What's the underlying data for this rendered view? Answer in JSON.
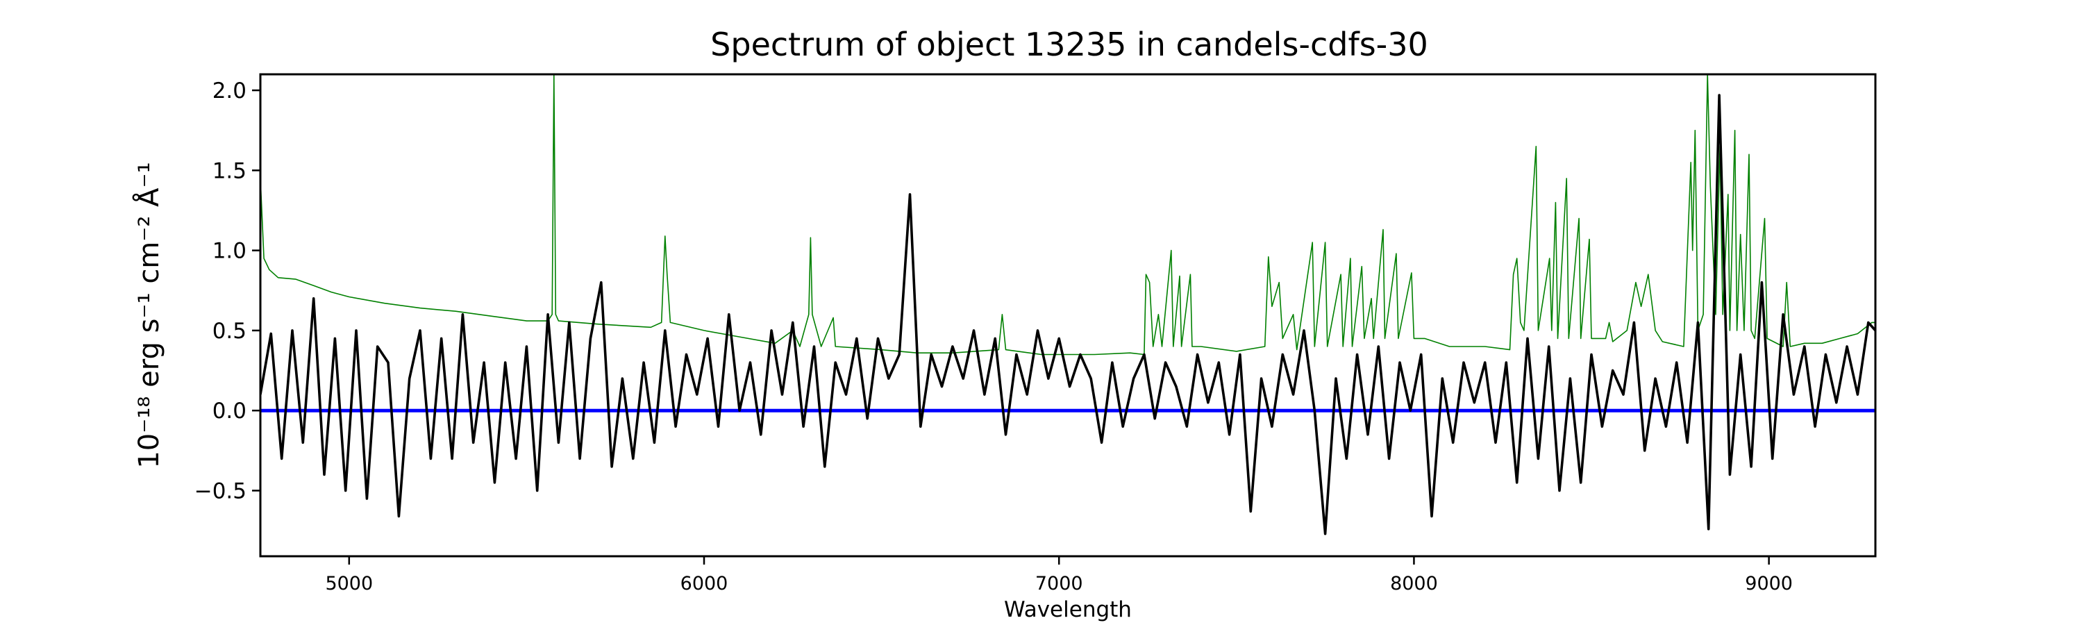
{
  "chart_data": {
    "type": "line",
    "title": "Spectrum of object 13235 in candels-cdfs-30",
    "xlabel": "Wavelength",
    "ylabel": "10⁻¹⁸ erg s⁻¹ cm⁻² Å⁻¹",
    "xlim": [
      4750,
      9300
    ],
    "ylim": [
      -0.91,
      2.1
    ],
    "xticks": [
      5000,
      6000,
      7000,
      8000,
      9000
    ],
    "yticks": [
      -0.5,
      0.0,
      0.5,
      1.0,
      1.5,
      2.0
    ],
    "ytick_labels": [
      "−0.5",
      "0.0",
      "0.5",
      "1.0",
      "1.5",
      "2.0"
    ],
    "grid": false,
    "colors": {
      "flux": "#000000",
      "sky": "#008000",
      "zero": "#0000ff"
    },
    "series": [
      {
        "key": "flux",
        "x": [
          4750,
          4780,
          4810,
          4840,
          4870,
          4900,
          4930,
          4960,
          4990,
          5020,
          5050,
          5080,
          5110,
          5140,
          5170,
          5200,
          5230,
          5260,
          5290,
          5320,
          5350,
          5380,
          5410,
          5440,
          5470,
          5500,
          5530,
          5560,
          5590,
          5620,
          5650,
          5680,
          5710,
          5740,
          5770,
          5800,
          5830,
          5860,
          5890,
          5920,
          5950,
          5980,
          6010,
          6040,
          6070,
          6100,
          6130,
          6160,
          6190,
          6220,
          6250,
          6280,
          6310,
          6340,
          6370,
          6400,
          6430,
          6460,
          6490,
          6520,
          6550,
          6580,
          6610,
          6640,
          6670,
          6700,
          6730,
          6760,
          6790,
          6820,
          6850,
          6880,
          6910,
          6940,
          6970,
          7000,
          7030,
          7060,
          7090,
          7120,
          7150,
          7180,
          7210,
          7240,
          7270,
          7300,
          7330,
          7360,
          7390,
          7420,
          7450,
          7480,
          7510,
          7540,
          7570,
          7600,
          7630,
          7660,
          7690,
          7720,
          7750,
          7780,
          7810,
          7840,
          7870,
          7900,
          7930,
          7960,
          7990,
          8020,
          8050,
          8080,
          8110,
          8140,
          8170,
          8200,
          8230,
          8260,
          8290,
          8320,
          8350,
          8380,
          8410,
          8440,
          8470,
          8500,
          8530,
          8560,
          8590,
          8620,
          8650,
          8680,
          8710,
          8740,
          8770,
          8800,
          8830,
          8860,
          8890,
          8920,
          8950,
          8980,
          9010,
          9040,
          9070,
          9100,
          9130,
          9160,
          9190,
          9220,
          9250,
          9280,
          9300
        ],
        "y": [
          0.1,
          0.48,
          -0.3,
          0.5,
          -0.2,
          0.7,
          -0.4,
          0.45,
          -0.5,
          0.5,
          -0.55,
          0.4,
          0.3,
          -0.66,
          0.2,
          0.5,
          -0.3,
          0.45,
          -0.3,
          0.6,
          -0.2,
          0.3,
          -0.45,
          0.3,
          -0.3,
          0.4,
          -0.5,
          0.6,
          -0.2,
          0.55,
          -0.3,
          0.45,
          0.8,
          -0.35,
          0.2,
          -0.3,
          0.3,
          -0.2,
          0.5,
          -0.1,
          0.35,
          0.1,
          0.45,
          -0.1,
          0.6,
          0.0,
          0.3,
          -0.15,
          0.5,
          0.1,
          0.55,
          -0.1,
          0.4,
          -0.35,
          0.3,
          0.1,
          0.45,
          -0.05,
          0.45,
          0.2,
          0.35,
          1.35,
          -0.1,
          0.35,
          0.15,
          0.4,
          0.2,
          0.5,
          0.1,
          0.45,
          -0.15,
          0.35,
          0.1,
          0.5,
          0.2,
          0.45,
          0.15,
          0.35,
          0.2,
          -0.2,
          0.3,
          -0.1,
          0.2,
          0.35,
          -0.05,
          0.3,
          0.15,
          -0.1,
          0.35,
          0.05,
          0.3,
          -0.15,
          0.35,
          -0.63,
          0.2,
          -0.1,
          0.35,
          0.1,
          0.5,
          0.0,
          -0.77,
          0.2,
          -0.3,
          0.35,
          -0.15,
          0.4,
          -0.3,
          0.3,
          0.0,
          0.35,
          -0.66,
          0.2,
          -0.2,
          0.3,
          0.05,
          0.3,
          -0.2,
          0.3,
          -0.45,
          0.45,
          -0.3,
          0.4,
          -0.5,
          0.2,
          -0.45,
          0.35,
          -0.1,
          0.25,
          0.1,
          0.55,
          -0.25,
          0.2,
          -0.1,
          0.3,
          -0.2,
          0.55,
          -0.74,
          1.97,
          -0.4,
          0.35,
          -0.35,
          0.8,
          -0.3,
          0.6,
          0.1,
          0.4,
          -0.1,
          0.35,
          0.05,
          0.4,
          0.1,
          0.55,
          0.5
        ]
      },
      {
        "key": "sky",
        "x": [
          4750,
          4760,
          4775,
          4800,
          4850,
          4900,
          4950,
          5000,
          5100,
          5200,
          5300,
          5400,
          5500,
          5560,
          5572,
          5577,
          5582,
          5590,
          5700,
          5850,
          5880,
          5890,
          5896,
          5905,
          6000,
          6100,
          6200,
          6250,
          6270,
          6295,
          6300,
          6305,
          6330,
          6364,
          6370,
          6500,
          6600,
          6700,
          6830,
          6840,
          6850,
          6950,
          7100,
          7200,
          7240,
          7245,
          7255,
          7265,
          7280,
          7290,
          7316,
          7322,
          7340,
          7345,
          7370,
          7375,
          7400,
          7500,
          7580,
          7590,
          7600,
          7620,
          7630,
          7660,
          7670,
          7714,
          7720,
          7750,
          7756,
          7794,
          7800,
          7821,
          7826,
          7853,
          7860,
          7880,
          7886,
          7913,
          7918,
          7950,
          7956,
          7993,
          8000,
          8030,
          8100,
          8200,
          8270,
          8280,
          8290,
          8300,
          8310,
          8344,
          8350,
          8382,
          8388,
          8399,
          8405,
          8430,
          8436,
          8465,
          8470,
          8494,
          8500,
          8540,
          8550,
          8560,
          8600,
          8625,
          8640,
          8660,
          8680,
          8700,
          8760,
          8780,
          8785,
          8792,
          8800,
          8815,
          8827,
          8835,
          8850,
          8862,
          8870,
          8885,
          8890,
          8904,
          8910,
          8920,
          8930,
          8944,
          8950,
          8960,
          8988,
          8995,
          9040,
          9050,
          9060,
          9100,
          9150,
          9200,
          9250,
          9290,
          9300
        ],
        "y": [
          1.45,
          0.95,
          0.88,
          0.83,
          0.82,
          0.78,
          0.74,
          0.71,
          0.67,
          0.64,
          0.62,
          0.59,
          0.56,
          0.56,
          0.6,
          2.1,
          0.6,
          0.56,
          0.54,
          0.52,
          0.55,
          1.09,
          0.85,
          0.55,
          0.5,
          0.46,
          0.42,
          0.5,
          0.4,
          0.6,
          1.08,
          0.6,
          0.4,
          0.58,
          0.4,
          0.38,
          0.36,
          0.36,
          0.38,
          0.6,
          0.38,
          0.35,
          0.35,
          0.36,
          0.35,
          0.85,
          0.8,
          0.4,
          0.6,
          0.4,
          1.0,
          0.4,
          0.84,
          0.4,
          0.85,
          0.4,
          0.4,
          0.37,
          0.4,
          0.96,
          0.65,
          0.8,
          0.45,
          0.6,
          0.38,
          1.05,
          0.4,
          1.05,
          0.4,
          0.85,
          0.4,
          0.95,
          0.4,
          0.9,
          0.45,
          0.7,
          0.45,
          1.13,
          0.45,
          0.98,
          0.45,
          0.86,
          0.45,
          0.45,
          0.4,
          0.4,
          0.38,
          0.85,
          0.95,
          0.55,
          0.5,
          1.65,
          0.5,
          0.95,
          0.5,
          1.3,
          0.45,
          1.45,
          0.45,
          1.2,
          0.45,
          1.07,
          0.45,
          0.45,
          0.55,
          0.43,
          0.5,
          0.8,
          0.65,
          0.85,
          0.5,
          0.43,
          0.4,
          1.55,
          1.0,
          1.75,
          0.5,
          0.6,
          2.1,
          1.4,
          0.6,
          1.65,
          0.6,
          1.35,
          0.5,
          1.75,
          0.5,
          1.1,
          0.5,
          1.6,
          0.5,
          0.45,
          1.2,
          0.45,
          0.4,
          0.8,
          0.4,
          0.42,
          0.42,
          0.45,
          0.48,
          0.55,
          0.55
        ]
      },
      {
        "key": "zero",
        "x": [
          4750,
          9300
        ],
        "y": [
          0.0,
          0.0
        ]
      }
    ]
  }
}
